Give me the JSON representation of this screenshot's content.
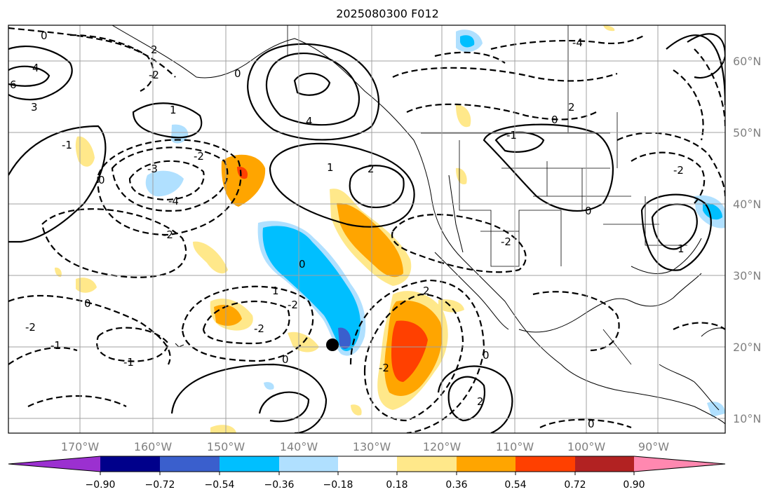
{
  "title": "2025080300 F012",
  "map": {
    "lon_labels": [
      "170°W",
      "160°W",
      "150°W",
      "140°W",
      "130°W",
      "120°W",
      "110°W",
      "100°W",
      "90°W"
    ],
    "lat_labels": [
      "60°N",
      "50°N",
      "40°N",
      "30°N",
      "20°N",
      "10°N"
    ],
    "grid": true,
    "contour_labels": [
      "0",
      "2",
      "4",
      "6",
      "3",
      "-1",
      "-2",
      "-3",
      "-4",
      "1",
      "4",
      "1",
      "2",
      "-2",
      "0",
      "0",
      "-2",
      "1",
      "0",
      "-2",
      "-1",
      "-2",
      "0",
      "-2",
      "2",
      "0",
      "0",
      "-1",
      "-2",
      "-1",
      "0",
      "0",
      "2",
      "-2",
      "0",
      "-4",
      "2",
      "1",
      "-2"
    ],
    "marker": "black-dot"
  },
  "colorbar": {
    "tick_labels": [
      "−0.90",
      "−0.72",
      "−0.54",
      "−0.36",
      "−0.18",
      "0.18",
      "0.36",
      "0.54",
      "0.72",
      "0.90"
    ],
    "colors": [
      "#9b30d0",
      "#00008b",
      "#3a5fcd",
      "#00bfff",
      "#b0e0ff",
      "#ffffff",
      "#ffe88a",
      "#ffa500",
      "#ff4000",
      "#b22222",
      "#ff88b0"
    ]
  }
}
